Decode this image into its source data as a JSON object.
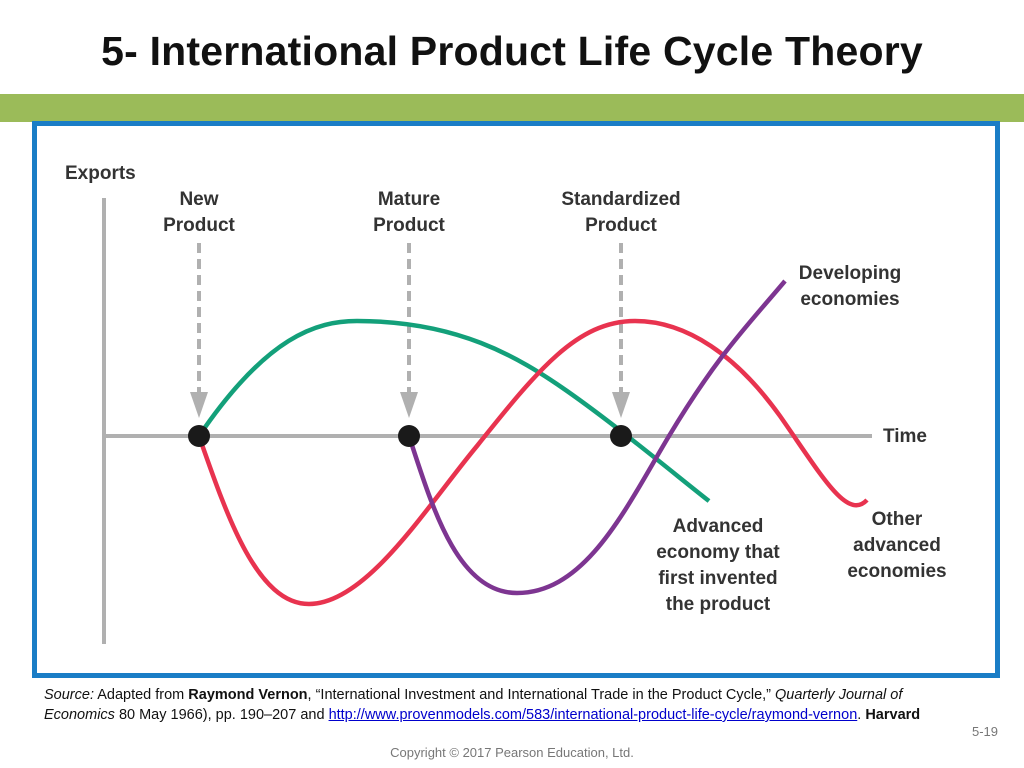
{
  "slide": {
    "title": "5- International Product Life Cycle Theory",
    "copyright": "Copyright © 2017 Pearson Education, Ltd.",
    "slide_number": "5-19"
  },
  "diagram": {
    "y_axis_label": "Exports",
    "x_axis_label": "Time",
    "stage_labels": [
      {
        "line1": "New",
        "line2": "Product"
      },
      {
        "line1": "Mature",
        "line2": "Product"
      },
      {
        "line1": "Standardized",
        "line2": "Product"
      }
    ],
    "curves": [
      {
        "name": "advanced-economy-inventor-curve",
        "color": "#13a07a",
        "label_lines": [
          "Advanced",
          "economy that",
          "first invented",
          "the product"
        ]
      },
      {
        "name": "other-advanced-economies-curve",
        "color": "#e8334f",
        "label_lines": [
          "Other",
          "advanced",
          "economies"
        ]
      },
      {
        "name": "developing-economies-curve",
        "color": "#7d3591",
        "label_lines": [
          "Developing",
          "economies"
        ]
      }
    ],
    "colors": {
      "axis": "#b0b0b0",
      "arrow": "#b0b0b0",
      "marker": "#1a1a1a",
      "frame": "#1a7dc6",
      "band": "#9bbb59"
    }
  },
  "source": {
    "prefix_italic": "Source:",
    "text1": " Adapted from ",
    "author": "Raymond Vernon",
    "text2": ", “International Investment and International Trade in the Product Cycle,” ",
    "journal": "Quarterly Journal of Economics",
    "text3": " 80 May 1966), pp. 190–207 and ",
    "link": "http://www.provenmodels.com/583/international-product-life-cycle/raymond-vernon",
    "text4": ". ",
    "tail_bold": "Harvard"
  }
}
